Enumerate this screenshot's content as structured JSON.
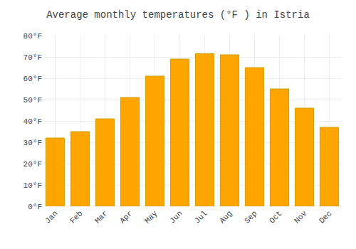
{
  "chart_data": {
    "type": "bar",
    "title": "Average monthly temperatures (°F ) in Istria",
    "categories": [
      "Jan",
      "Feb",
      "Mar",
      "Apr",
      "May",
      "Jun",
      "Jul",
      "Aug",
      "Sep",
      "Oct",
      "Nov",
      "Dec"
    ],
    "values": [
      32,
      35,
      41,
      51,
      61,
      69,
      71.5,
      71,
      65,
      55,
      46,
      37
    ],
    "color": "#FFA500",
    "ylim": [
      0,
      80
    ],
    "yticks": [
      {
        "value": 0,
        "label": "0°F"
      },
      {
        "value": 10,
        "label": "10°F"
      },
      {
        "value": 20,
        "label": "20°F"
      },
      {
        "value": 30,
        "label": "30°F"
      },
      {
        "value": 40,
        "label": "40°F"
      },
      {
        "value": 50,
        "label": "50°F"
      },
      {
        "value": 60,
        "label": "60°F"
      },
      {
        "value": 70,
        "label": "70°F"
      },
      {
        "value": 80,
        "label": "80°F"
      }
    ],
    "grid": true
  }
}
